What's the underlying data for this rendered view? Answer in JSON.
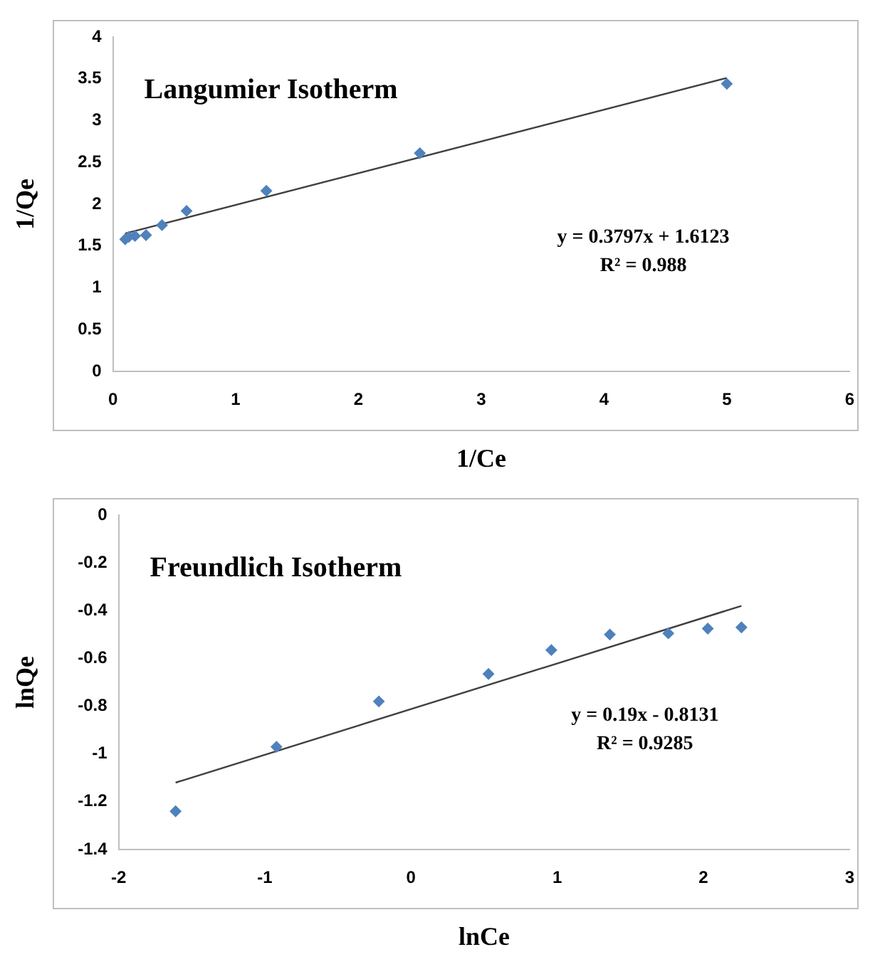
{
  "chart_data": [
    {
      "type": "scatter",
      "title": "Langumier Isotherm",
      "xlabel": "1/Ce",
      "ylabel": "1/Qe",
      "marker": "diamond",
      "grid": false,
      "legend": false,
      "xlim": [
        0,
        6
      ],
      "xticks": [
        0,
        1,
        2,
        3,
        4,
        5,
        6
      ],
      "ylim": [
        0,
        4
      ],
      "yticks": [
        0,
        0.5,
        1,
        1.5,
        2,
        2.5,
        3,
        3.5,
        4
      ],
      "series": [
        {
          "color": "#4f81bd",
          "x": [
            0.1,
            0.13,
            0.18,
            0.27,
            0.4,
            0.6,
            1.25,
            2.5,
            5
          ],
          "values": [
            1.58,
            1.61,
            1.62,
            1.63,
            1.75,
            1.92,
            2.16,
            2.61,
            3.44
          ]
        },
        {
          "type": "line",
          "color": "#404040",
          "marker": "none",
          "x": [
            0.1,
            5
          ],
          "values": [
            1.65,
            3.51
          ]
        }
      ],
      "annotations": [
        "y = 0.3797x + 1.6123",
        "R² = 0.988"
      ]
    },
    {
      "type": "scatter",
      "title": "Freundlich Isotherm",
      "xlabel": "lnCe",
      "ylabel": "lnQe",
      "marker": "diamond",
      "grid": false,
      "legend": false,
      "xlim": [
        -2,
        3
      ],
      "xticks": [
        -2,
        -1,
        0,
        1,
        2,
        3
      ],
      "ylim": [
        -1.4,
        0
      ],
      "yticks": [
        -1.4,
        -1.2,
        -1,
        -0.8,
        -0.6,
        -0.4,
        -0.2,
        0
      ],
      "series": [
        {
          "color": "#4f81bd",
          "x": [
            -1.61,
            -0.92,
            -0.22,
            0.53,
            0.96,
            1.36,
            1.76,
            2.03,
            2.26
          ],
          "values": [
            -1.24,
            -0.97,
            -0.78,
            -0.665,
            -0.565,
            -0.5,
            -0.495,
            -0.475,
            -0.47
          ]
        },
        {
          "type": "line",
          "color": "#404040",
          "marker": "none",
          "x": [
            -1.61,
            2.26
          ],
          "values": [
            -1.12,
            -0.38
          ]
        }
      ],
      "annotations": [
        "y = 0.19x - 0.8131",
        "R² = 0.9285"
      ]
    }
  ]
}
